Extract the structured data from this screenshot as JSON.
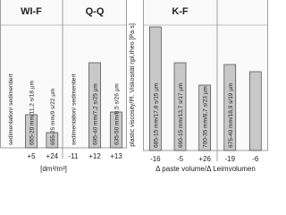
{
  "chart_data": [
    {
      "type": "bar",
      "ylim": [
        0,
        150
      ],
      "color": "#c8c8c8",
      "xlabel": "[dm³/m³]",
      "panels": [
        {
          "title": "WI-F",
          "categories": [
            null,
            "+5",
            "+24"
          ],
          "values": [
            null,
            37,
            17
          ],
          "bar_labels": [
            "sedimentation/ sedimentiert",
            "655-20 mm/11,2 s/18 µm",
            "655-25 mm/9 s/22 µm"
          ]
        },
        {
          "title": "Q-Q",
          "categories": [
            "-11",
            "+12",
            "+13"
          ],
          "values": [
            null,
            95,
            40
          ],
          "bar_labels": [
            "sedimentation/ sedimentiert",
            "695-40 mm/7,2 s/25 µm",
            "635-50 mm/8,5 s/26 µm"
          ]
        }
      ]
    },
    {
      "type": "bar",
      "ylim": [
        0,
        150
      ],
      "color": "#c8c8c8",
      "ylabel": "plastic viscosity/Pl. Viskosität ηpl,rheo [Pa·s]",
      "xlabel": "Δ paste volume/Δ Leimvolumen",
      "panels": [
        {
          "title": "K-F",
          "categories": [
            "-16",
            "-5",
            "+26"
          ],
          "values": [
            138,
            98,
            73
          ],
          "bar_labels": [
            "685-15 mm/17,8 s/15 µm",
            "690-15 mm/13,7 s/17 µm",
            "700-35 mm/8,7 s/23 µm"
          ]
        },
        {
          "categories": [
            "-19",
            "-6"
          ],
          "values": [
            96,
            88
          ],
          "bar_labels": [
            "675-40 mm/18,9 s/19 µm",
            null
          ]
        }
      ]
    }
  ]
}
